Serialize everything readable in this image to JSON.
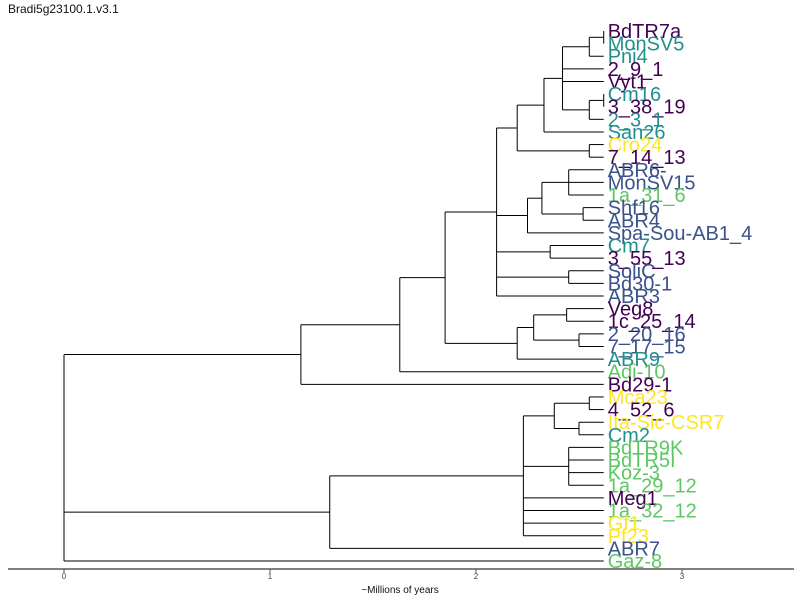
{
  "title": "Bradi5g23100.1.v3.1",
  "chart_data": {
    "type": "tree",
    "xlabel": "~Millions of years",
    "xlim": [
      0,
      3.55
    ],
    "x_ticks": [
      0,
      1,
      2,
      3
    ],
    "colors": {
      "purple": "#440154",
      "teal": "#21908d",
      "blue": "#3b528b",
      "green": "#5dc863",
      "yellow": "#fde725"
    },
    "leaves": [
      {
        "label": "BdTR7a",
        "color": "purple"
      },
      {
        "label": "MonSV5",
        "color": "teal"
      },
      {
        "label": "Pni4",
        "color": "teal"
      },
      {
        "label": "2_9_1",
        "color": "purple"
      },
      {
        "label": "Vyt1",
        "color": "purple"
      },
      {
        "label": "Cm16",
        "color": "teal"
      },
      {
        "label": "3_38_19",
        "color": "purple"
      },
      {
        "label": "2_3_1",
        "color": "teal"
      },
      {
        "label": "San26",
        "color": "teal"
      },
      {
        "label": "Cro24",
        "color": "yellow"
      },
      {
        "label": "7_14_13",
        "color": "purple"
      },
      {
        "label": "ABR6-",
        "color": "blue"
      },
      {
        "label": "MonSV15",
        "color": "blue"
      },
      {
        "label": "1a_31_6",
        "color": "green"
      },
      {
        "label": "Shf16",
        "color": "blue"
      },
      {
        "label": "ABR4",
        "color": "blue"
      },
      {
        "label": "Spa-Sou-AB1_4",
        "color": "blue"
      },
      {
        "label": "Cm7",
        "color": "teal"
      },
      {
        "label": "3_55_13",
        "color": "purple"
      },
      {
        "label": "SoliC",
        "color": "blue"
      },
      {
        "label": "Bd30-1",
        "color": "blue"
      },
      {
        "label": "ABR3",
        "color": "blue"
      },
      {
        "label": "Veg8",
        "color": "purple"
      },
      {
        "label": "1c_25_14",
        "color": "purple"
      },
      {
        "label": "2_20_16",
        "color": "blue"
      },
      {
        "label": "7_17_15",
        "color": "blue"
      },
      {
        "label": "ABR9",
        "color": "teal"
      },
      {
        "label": "Adi-10",
        "color": "green"
      },
      {
        "label": "Bd29-1",
        "color": "purple"
      },
      {
        "label": "Mca23",
        "color": "yellow"
      },
      {
        "label": "4_52_6",
        "color": "purple"
      },
      {
        "label": "Ita-Sic-CSR7",
        "color": "yellow"
      },
      {
        "label": "Cm2",
        "color": "teal"
      },
      {
        "label": "BdTR9K",
        "color": "green"
      },
      {
        "label": "BdTR5I",
        "color": "green"
      },
      {
        "label": "Koz-3",
        "color": "green"
      },
      {
        "label": "1a_29_12",
        "color": "green"
      },
      {
        "label": "Meg1",
        "color": "purple"
      },
      {
        "label": "1a_32_12",
        "color": "green"
      },
      {
        "label": "Gf1",
        "color": "yellow"
      },
      {
        "label": "Pf23",
        "color": "yellow"
      },
      {
        "label": "ABR7",
        "color": "blue"
      },
      {
        "label": "Gaz-8",
        "color": "green"
      }
    ],
    "tree": {
      "h": 0,
      "c": [
        {
          "h": 1.15,
          "c": [
            {
              "h": 1.63,
              "c": [
                {
                  "h": 1.85,
                  "c": [
                    {
                      "h": 2.1,
                      "c": [
                        {
                          "h": 2.2,
                          "c": [
                            {
                              "h": 2.33,
                              "c": [
                                {
                                  "h": 2.42,
                                  "c": [
                                    {
                                      "h": 2.55,
                                      "c": [
                                        {
                                          "h": 2.62,
                                          "c": [
                                            {
                                              "l": 0
                                            },
                                            {
                                              "l": 1
                                            }
                                          ]
                                        },
                                        {
                                          "l": 2
                                        }
                                      ]
                                    },
                                    {
                                      "l": 3
                                    },
                                    {
                                      "l": 4
                                    },
                                    {
                                      "h": 2.55,
                                      "c": [
                                        {
                                          "h": 2.62,
                                          "c": [
                                            {
                                              "l": 5
                                            },
                                            {
                                              "l": 6
                                            }
                                          ]
                                        },
                                        {
                                          "l": 7
                                        }
                                      ]
                                    }
                                  ]
                                },
                                {
                                  "l": 8
                                }
                              ]
                            },
                            {
                              "h": 2.55,
                              "c": [
                                {
                                  "l": 9
                                },
                                {
                                  "l": 10
                                }
                              ]
                            }
                          ]
                        },
                        {
                          "h": 2.25,
                          "c": [
                            {
                              "h": 2.32,
                              "c": [
                                {
                                  "h": 2.45,
                                  "c": [
                                    {
                                      "l": 11
                                    },
                                    {
                                      "l": 12
                                    },
                                    {
                                      "l": 13
                                    }
                                  ]
                                },
                                {
                                  "h": 2.52,
                                  "c": [
                                    {
                                      "l": 14
                                    },
                                    {
                                      "l": 15
                                    }
                                  ]
                                }
                              ]
                            },
                            {
                              "l": 16
                            }
                          ]
                        },
                        {
                          "h": 2.36,
                          "c": [
                            {
                              "l": 17
                            },
                            {
                              "l": 18
                            }
                          ]
                        },
                        {
                          "h": 2.45,
                          "c": [
                            {
                              "l": 19
                            },
                            {
                              "l": 20
                            }
                          ]
                        },
                        {
                          "l": 21
                        }
                      ]
                    },
                    {
                      "h": 2.2,
                      "c": [
                        {
                          "h": 2.28,
                          "c": [
                            {
                              "h": 2.44,
                              "c": [
                                {
                                  "l": 22
                                },
                                {
                                  "l": 23
                                }
                              ]
                            },
                            {
                              "h": 2.5,
                              "c": [
                                {
                                  "l": 24
                                },
                                {
                                  "l": 25
                                }
                              ]
                            }
                          ]
                        },
                        {
                          "l": 26
                        }
                      ]
                    }
                  ]
                },
                {
                  "l": 27
                }
              ]
            },
            {
              "l": 28
            }
          ]
        },
        {
          "h": 1.29,
          "c": [
            {
              "h": 2.23,
              "c": [
                {
                  "h": 2.38,
                  "c": [
                    {
                      "h": 2.55,
                      "c": [
                        {
                          "l": 29
                        },
                        {
                          "l": 30
                        }
                      ]
                    },
                    {
                      "h": 2.5,
                      "c": [
                        {
                          "l": 31
                        },
                        {
                          "l": 32
                        }
                      ]
                    }
                  ]
                },
                {
                  "h": 2.45,
                  "c": [
                    {
                      "l": 33
                    },
                    {
                      "l": 34
                    },
                    {
                      "l": 35
                    },
                    {
                      "l": 36
                    }
                  ]
                },
                {
                  "l": 37
                },
                {
                  "l": 38
                },
                {
                  "l": 39
                },
                {
                  "l": 40
                }
              ]
            },
            {
              "l": 41
            }
          ]
        },
        {
          "l": 42
        }
      ]
    }
  }
}
